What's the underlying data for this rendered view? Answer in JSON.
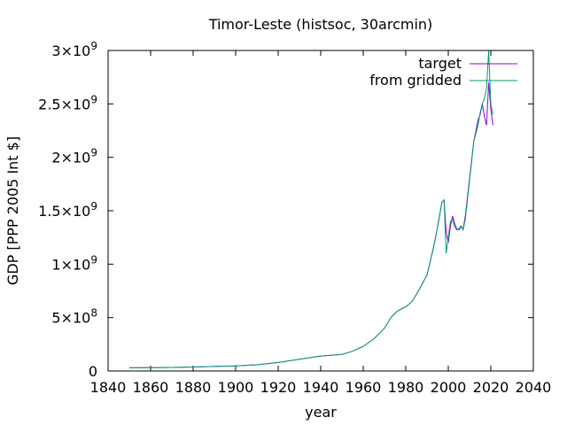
{
  "chart_data": {
    "type": "line",
    "title": "Timor-Leste (histsoc, 30arcmin)",
    "xlabel": "year",
    "ylabel": "GDP [PPP 2005 Int $]",
    "xlim": [
      1840,
      2040
    ],
    "ylim": [
      0,
      3000000000
    ],
    "x_ticks": [
      {
        "value": 1840,
        "label": "1840"
      },
      {
        "value": 1860,
        "label": "1860"
      },
      {
        "value": 1880,
        "label": "1880"
      },
      {
        "value": 1900,
        "label": "1900"
      },
      {
        "value": 1920,
        "label": "1920"
      },
      {
        "value": 1940,
        "label": "1940"
      },
      {
        "value": 1960,
        "label": "1960"
      },
      {
        "value": 1980,
        "label": "1980"
      },
      {
        "value": 2000,
        "label": "2000"
      },
      {
        "value": 2020,
        "label": "2020"
      },
      {
        "value": 2040,
        "label": "2040"
      }
    ],
    "y_ticks": [
      {
        "value": 0,
        "mant": "0",
        "exp": ""
      },
      {
        "value": 500000000,
        "mant": "5×10",
        "exp": "8"
      },
      {
        "value": 1000000000,
        "mant": "1×10",
        "exp": "9"
      },
      {
        "value": 1500000000,
        "mant": "1.5×10",
        "exp": "9"
      },
      {
        "value": 2000000000,
        "mant": "2×10",
        "exp": "9"
      },
      {
        "value": 2500000000,
        "mant": "2.5×10",
        "exp": "9"
      },
      {
        "value": 3000000000,
        "mant": "3×10",
        "exp": "9"
      }
    ],
    "legend_position": "top-right",
    "grid": false,
    "series": [
      {
        "name": "target",
        "color": "#9400d3",
        "points": [
          [
            1850,
            30000000
          ],
          [
            1860,
            31000000
          ],
          [
            1870,
            33000000
          ],
          [
            1880,
            37000000
          ],
          [
            1890,
            42000000
          ],
          [
            1900,
            48000000
          ],
          [
            1910,
            58000000
          ],
          [
            1920,
            80000000
          ],
          [
            1930,
            110000000
          ],
          [
            1940,
            140000000
          ],
          [
            1950,
            155000000
          ],
          [
            1955,
            185000000
          ],
          [
            1960,
            230000000
          ],
          [
            1965,
            300000000
          ],
          [
            1970,
            400000000
          ],
          [
            1973,
            500000000
          ],
          [
            1976,
            560000000
          ],
          [
            1980,
            600000000
          ],
          [
            1983,
            650000000
          ],
          [
            1986,
            750000000
          ],
          [
            1990,
            900000000
          ],
          [
            1993,
            1150000000
          ],
          [
            1995,
            1350000000
          ],
          [
            1997,
            1580000000
          ],
          [
            1998,
            1600000000
          ],
          [
            1999,
            1300000000
          ],
          [
            2000,
            1200000000
          ],
          [
            2001,
            1350000000
          ],
          [
            2002,
            1450000000
          ],
          [
            2003,
            1380000000
          ],
          [
            2004,
            1330000000
          ],
          [
            2005,
            1320000000
          ],
          [
            2006,
            1350000000
          ],
          [
            2007,
            1330000000
          ],
          [
            2008,
            1450000000
          ],
          [
            2010,
            1800000000
          ],
          [
            2012,
            2150000000
          ],
          [
            2014,
            2350000000
          ],
          [
            2015,
            2400000000
          ],
          [
            2016,
            2500000000
          ],
          [
            2017,
            2380000000
          ],
          [
            2018,
            2300000000
          ],
          [
            2019,
            2700000000
          ],
          [
            2020,
            2450000000
          ],
          [
            2021,
            2300000000
          ]
        ]
      },
      {
        "name": "from gridded",
        "color": "#009e73",
        "points": [
          [
            1850,
            30000000
          ],
          [
            1860,
            31000000
          ],
          [
            1870,
            33000000
          ],
          [
            1880,
            37000000
          ],
          [
            1890,
            42000000
          ],
          [
            1900,
            48000000
          ],
          [
            1910,
            58000000
          ],
          [
            1920,
            80000000
          ],
          [
            1930,
            110000000
          ],
          [
            1940,
            140000000
          ],
          [
            1950,
            155000000
          ],
          [
            1955,
            185000000
          ],
          [
            1960,
            230000000
          ],
          [
            1965,
            300000000
          ],
          [
            1970,
            400000000
          ],
          [
            1973,
            500000000
          ],
          [
            1976,
            560000000
          ],
          [
            1980,
            600000000
          ],
          [
            1983,
            650000000
          ],
          [
            1986,
            750000000
          ],
          [
            1990,
            900000000
          ],
          [
            1993,
            1150000000
          ],
          [
            1995,
            1350000000
          ],
          [
            1997,
            1580000000
          ],
          [
            1998,
            1600000000
          ],
          [
            1999,
            1100000000
          ],
          [
            2000,
            1250000000
          ],
          [
            2001,
            1400000000
          ],
          [
            2002,
            1420000000
          ],
          [
            2003,
            1350000000
          ],
          [
            2004,
            1320000000
          ],
          [
            2005,
            1330000000
          ],
          [
            2006,
            1360000000
          ],
          [
            2007,
            1320000000
          ],
          [
            2008,
            1420000000
          ],
          [
            2010,
            1780000000
          ],
          [
            2012,
            2150000000
          ],
          [
            2014,
            2300000000
          ],
          [
            2015,
            2420000000
          ],
          [
            2016,
            2500000000
          ],
          [
            2017,
            2550000000
          ],
          [
            2018,
            2650000000
          ],
          [
            2019,
            3000000000
          ],
          [
            2020,
            2500000000
          ],
          [
            2021,
            2400000000
          ]
        ]
      }
    ]
  }
}
